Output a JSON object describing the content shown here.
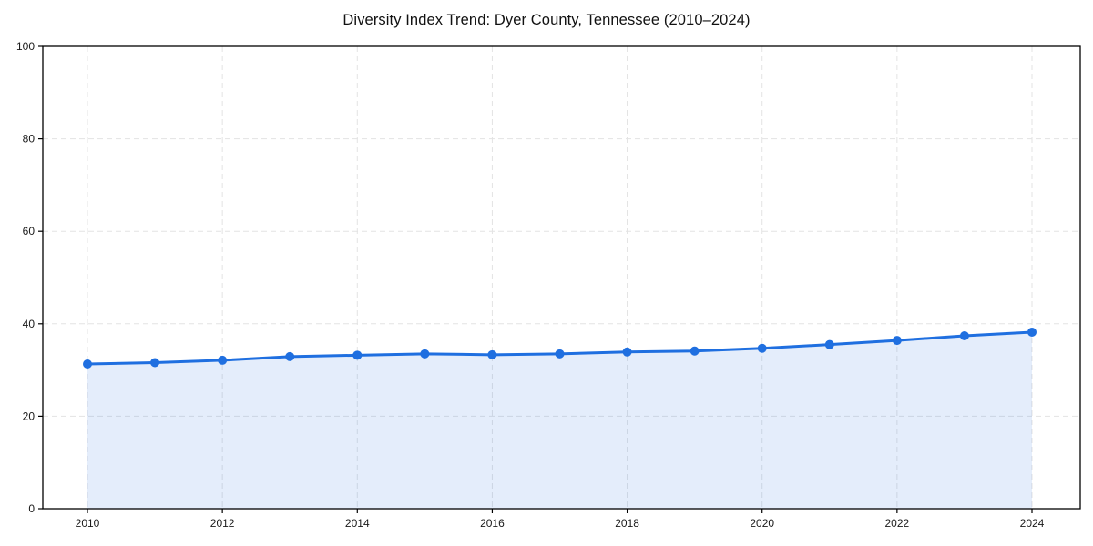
{
  "title": "Diversity Index Trend: Dyer County, Tennessee (2010–2024)",
  "chart_data": {
    "type": "line",
    "title": "Diversity Index Trend: Dyer County, Tennessee (2010–2024)",
    "xlabel": "",
    "ylabel": "",
    "x": [
      2010,
      2011,
      2012,
      2013,
      2014,
      2015,
      2016,
      2017,
      2018,
      2019,
      2020,
      2021,
      2022,
      2023,
      2024
    ],
    "series": [
      {
        "name": "Diversity Index",
        "values": [
          31.3,
          31.6,
          32.1,
          32.9,
          33.2,
          33.5,
          33.3,
          33.5,
          33.9,
          34.1,
          34.7,
          35.5,
          36.4,
          37.4,
          38.2
        ]
      }
    ],
    "area_fill": true,
    "markers": true,
    "x_ticks": [
      2010,
      2012,
      2014,
      2016,
      2018,
      2020,
      2022,
      2024
    ],
    "y_ticks": [
      0,
      20,
      40,
      60,
      80,
      100
    ],
    "xlim": [
      2009.34,
      2024.72
    ],
    "ylim": [
      0,
      100
    ],
    "grid": "dashed",
    "legend": "none",
    "colors": {
      "line": "#1f6fe0",
      "marker": "#1f6fe0",
      "fill": "rgba(31,111,224,0.12)",
      "grid": "#e3e3e3",
      "spine": "#000000",
      "tick_label": "#1a1a1a",
      "title": "#111111",
      "background": "#ffffff"
    }
  }
}
